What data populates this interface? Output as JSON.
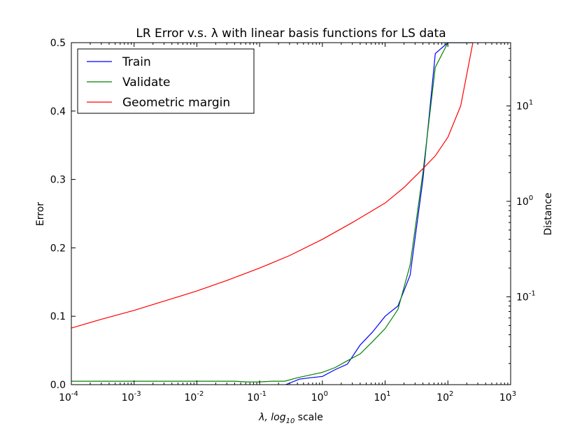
{
  "chart_data": {
    "type": "line",
    "title": "LR Error v.s. λ with linear basis functions for LS data",
    "xlabel_prefix": "λ, ",
    "xlabel_log": "log",
    "xlabel_sub": "10",
    "xlabel_suffix": " scale",
    "ylabel_left": "Error",
    "ylabel_right": "Distance",
    "x_scale": "log",
    "xlim": [
      0.0001,
      1000
    ],
    "ylim_left": [
      0,
      0.5
    ],
    "y_right_scale": "log",
    "ylim_right": [
      0.012,
      46
    ],
    "x_tick_values": [
      0.0001,
      0.001,
      0.01,
      0.1,
      1,
      10,
      100,
      1000
    ],
    "x_tick_exponents": [
      "-4",
      "-3",
      "-2",
      "-1",
      "0",
      "1",
      "2",
      "3"
    ],
    "y_left_tick_values": [
      0,
      0.1,
      0.2,
      0.3,
      0.4,
      0.5
    ],
    "y_left_tick_labels": [
      "0.0",
      "0.1",
      "0.2",
      "0.3",
      "0.4",
      "0.5"
    ],
    "y_right_tick_values": [
      0.1,
      1,
      10
    ],
    "y_right_tick_exponents": [
      "-1",
      "0",
      "1"
    ],
    "legend_position": "top-left",
    "grid": false,
    "series": [
      {
        "name": "Train",
        "axis": "left",
        "color": "#0000ff",
        "x": [
          0.26,
          0.43,
          0.63,
          1,
          1.6,
          2.5,
          4,
          6.3,
          10,
          16,
          25,
          40,
          63,
          100,
          250
        ],
        "y": [
          0.0,
          0.008,
          0.01,
          0.012,
          0.022,
          0.03,
          0.058,
          0.077,
          0.1,
          0.115,
          0.16,
          0.3,
          0.484,
          0.5,
          0.5
        ]
      },
      {
        "name": "Validate",
        "axis": "left",
        "color": "#008000",
        "x": [
          0.0001,
          0.001,
          0.01,
          0.04,
          0.063,
          0.1,
          0.16,
          0.25,
          0.4,
          0.63,
          1,
          1.6,
          2.5,
          4,
          6.3,
          10,
          16,
          25,
          40,
          63,
          100,
          250
        ],
        "y": [
          0.005,
          0.005,
          0.005,
          0.005,
          0.004,
          0.004,
          0.005,
          0.005,
          0.01,
          0.014,
          0.018,
          0.025,
          0.035,
          0.045,
          0.063,
          0.082,
          0.11,
          0.175,
          0.31,
          0.464,
          0.5,
          0.5
        ]
      },
      {
        "name": "Geometric margin",
        "axis": "right",
        "color": "#ff0000",
        "x": [
          0.0001,
          0.0003,
          0.001,
          0.003,
          0.01,
          0.03,
          0.1,
          0.3,
          1,
          3,
          10,
          20,
          40,
          63,
          100,
          160,
          250
        ],
        "y": [
          0.047,
          0.058,
          0.072,
          0.09,
          0.115,
          0.148,
          0.2,
          0.27,
          0.4,
          0.6,
          0.96,
          1.4,
          2.2,
          3.0,
          4.7,
          10,
          46
        ]
      }
    ]
  }
}
